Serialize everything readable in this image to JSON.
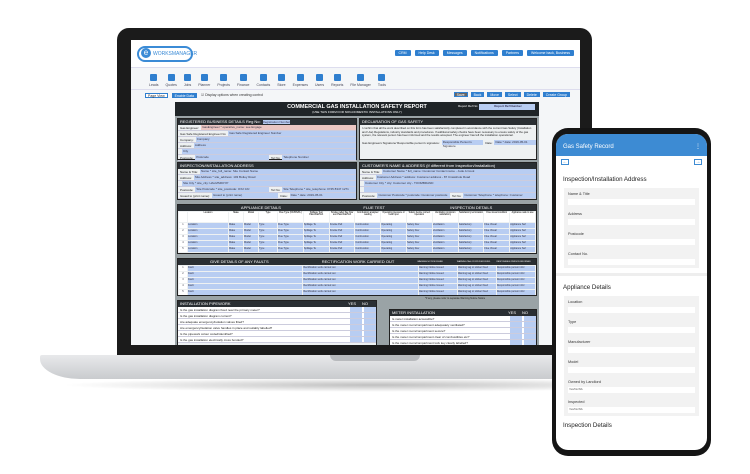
{
  "topbar": {
    "buttons": [
      "CRM",
      "Help Desk",
      "Messages",
      "Notifications",
      "Partners",
      "Welcome back, Business"
    ]
  },
  "logo": "WORKSMANAGER",
  "nav": [
    "Leads",
    "Quotes",
    "Jobs",
    "Planner",
    "Projects",
    "Finance",
    "Contacts",
    "Store",
    "Expenses",
    "Users",
    "Reports",
    "File Manager",
    "Tools"
  ],
  "options": {
    "page_view": "Page View",
    "enable_data": "Enable Data",
    "display_label": "Display options when creating control",
    "right": [
      "Save",
      "Back",
      "Move",
      "Select",
      "Delete",
      "Create Group"
    ]
  },
  "form": {
    "title": "COMMERCIAL GAS INSTALLATION SAFETY REPORT",
    "subtitle": "(USE THIS FORM FOR NON-DOMESTIC INSTALLATIONS ONLY)",
    "ref_label": "Report Ref No:",
    "ref_value": "Report Ref Number",
    "business": {
      "heading": "REGISTERED BUSINESS DETAILS",
      "reg_label": "Reg No:",
      "reg": "Registration Number",
      "rows": [
        [
          "Gas Engineer:",
          "GasEngineer * operative_name: see Engage"
        ],
        [
          "Gas Safe Registered Engineer No:",
          "Gas Safe Registered Engineer Number"
        ],
        [
          "Company:",
          "Company"
        ],
        [
          "Address:",
          "Address"
        ],
        [
          "",
          "City"
        ],
        [
          "Postcode:",
          "Postcode"
        ]
      ],
      "tel_label": "Tel No:",
      "tel": "Telephone Number"
    },
    "declaration": {
      "heading": "DECLARATION OF GAS SAFETY",
      "text": "I confirm that all the work described on this form has been satisfactorily completed in accordance with the current Gas Safety (Installation and Use) Regulations, industry standards and procedures. If additional safety checks have been necessary to ensure safety of the gas system, the relevant person has been informed and the results accepted. The engineer has left the installation operational.",
      "sig_label": "Gas Engineers Signature/ Responsible person's signature:",
      "sig": "Responsible Person's Signature",
      "date_label": "Date:",
      "date": "Date * date: 2019-05-01"
    },
    "inspection": {
      "heading": "INSPECTION/INSTALLATION ADDRESS",
      "rows": [
        [
          "Name & Title:",
          "Name * site_full_name: Site Contact Name"
        ],
        [
          "Address:",
          "Site Address * site_address: 103 Botley Road"
        ],
        [
          "",
          "Site City * site_city: HALMSROYP"
        ],
        [
          "Postcode:",
          "Site Postcode * site_postcode: OX2 0JJ"
        ],
        [
          "Issued to (print name):",
          "Issued to (print name)"
        ]
      ],
      "tel_label": "Tel No:",
      "tel": "Site Telephone * site_telephone: 0745 8347 1271",
      "date_label": "Date:",
      "date": "Date * date: 2019-05-01"
    },
    "customer": {
      "heading": "CUSTOMER'S NAME & ADDRESS",
      "note": "(If different from Inspection/Installation)",
      "rows": [
        [
          "Name & Title:",
          "Customer Name * full_name: Customer Contact name - Jude A Cook"
        ],
        [
          "Address:",
          "Customer Address * address: Customer address - 87 Crawshole Road"
        ],
        [
          "",
          "Customer City * city: Customer city - TOOMBRAND"
        ],
        [
          "",
          ""
        ],
        [
          "Postcode:",
          "Customer Postcode * postcode: Customer postcode"
        ]
      ],
      "tel_label": "Tel No:",
      "tel": "Customer Telephone * telephone: Customer"
    },
    "appliance": {
      "heading": "APPLIANCE DETAILS",
      "flue_heading": "FLUE TEST",
      "insp_heading": "INSPECTION DETAILS",
      "columns": [
        "",
        "Location",
        "Make",
        "Model",
        "Type",
        "Flue Type (OF/RS/FL)",
        "Spillage Test Pass/Fail/N/A",
        "Smoke pellet flue flow test Pass/Fail/N/A",
        "Combustion analyser reading",
        "Operating pressure or heat input",
        "Safety device correct operation",
        "Ventilation provision satisfactory",
        "Satisfactory termination",
        "Flue visual condition",
        "Appliance safe to use"
      ],
      "rows": [
        [
          "1",
          "Location",
          "Make",
          "Model",
          "Type",
          "Flue Type",
          "Spillage Te",
          "Smoke Pell",
          "Combustion",
          "Operating",
          "Safety Dev",
          "Ventilation",
          "Satisfactory",
          "Flue Visual",
          "Appliance Saf"
        ],
        [
          "2",
          "Location",
          "Make",
          "Model",
          "Type",
          "Flue Type",
          "Spillage Te",
          "Smoke Pell",
          "Combustion",
          "Operating",
          "Safety Dev",
          "Ventilation",
          "Satisfactory",
          "Flue Visual",
          "Appliance Saf"
        ],
        [
          "3",
          "Location",
          "Make",
          "Model",
          "Type",
          "Flue Type",
          "Spillage Te",
          "Smoke Pell",
          "Combustion",
          "Operating",
          "Safety Dev",
          "Ventilation",
          "Satisfactory",
          "Flue Visual",
          "Appliance Saf"
        ],
        [
          "4",
          "Location",
          "Make",
          "Model",
          "Type",
          "Flue Type",
          "Spillage Te",
          "Smoke Pell",
          "Combustion",
          "Operating",
          "Safety Dev",
          "Ventilation",
          "Satisfactory",
          "Flue Visual",
          "Appliance Saf"
        ],
        [
          "5",
          "Location",
          "Make",
          "Model",
          "Type",
          "Flue Type",
          "Spillage Te",
          "Smoke Pell",
          "Combustion",
          "Operating",
          "Safety Dev",
          "Ventilation",
          "Satisfactory",
          "Flue Visual",
          "Appliance Saf"
        ]
      ]
    },
    "faults": {
      "heading": "GIVE DETAILS OF ANY FAULTS",
      "rect_heading": "RECTIFICATION WORK CARRIED OUT",
      "col_a": "WARNING NOTICE ISSUED",
      "col_b": "WARNING TAG OR STICKER FIXED",
      "col_c": "RESPONSIBLE PERSON INFORMED",
      "rows": [
        [
          "1",
          "Fault",
          "Rectification work carried out",
          "Warning Notice Issued",
          "Warning tag or sticker fixed",
          "Responsible person infor"
        ],
        [
          "2",
          "Fault",
          "Rectification work carried out",
          "Warning Notice Issued",
          "Warning tag or sticker fixed",
          "Responsible person infor"
        ],
        [
          "3",
          "Fault",
          "Rectification work carried out",
          "Warning Notice Issued",
          "Warning tag or sticker fixed",
          "Responsible person infor"
        ],
        [
          "4",
          "Fault",
          "Rectification work carried out",
          "Warning Notice Issued",
          "Warning tag or sticker fixed",
          "Responsible person infor"
        ],
        [
          "5",
          "Fault",
          "Rectification work carried out",
          "Warning Notice Issued",
          "Warning tag or sticker fixed",
          "Responsible person infor"
        ]
      ],
      "note": "*If any, please refer to separate Warning Notice Notice"
    },
    "pipework": {
      "heading": "INSTALLATION PIPEWORK",
      "yes": "YES",
      "no": "NO",
      "rows": [
        "Is the gas installation diagram fixed near the primary meter?",
        "Is the gas installation diagram current?",
        "Are adequate emergency/isolation valves fitted?",
        "Are emergency/isolation valve handles in place and suitably labelled?",
        "Is the pipework colour coded/identified?",
        "Is the gas installation electrically cross bonded?"
      ]
    },
    "meter": {
      "heading": "METER INSTALLATION",
      "yes": "YES",
      "no": "NO",
      "rows": [
        "Is meter installation accessible?",
        "Is the meter room/compartment adequately ventilated?",
        "Is the meter room/compartment secure?",
        "Is the meter room/compartment clear of combustibles etc?",
        "Is the meter room/compartment lock key clearly labelled?"
      ]
    }
  },
  "phone": {
    "title": "Gas Safety Record",
    "section1": "Inspection/Installation Address",
    "fields1": [
      "Name & Title",
      "Address",
      "Postcode",
      "Contact No."
    ],
    "section2": "Appliance Details",
    "fields2": [
      "Location",
      "Type",
      "Manufacturer",
      "Model"
    ],
    "selects": [
      {
        "label": "Owned by Landlord",
        "value": "Yes/No/NA"
      },
      {
        "label": "Inspected",
        "value": "Yes/No/NA"
      }
    ],
    "section3": "Inspection Details"
  },
  "colors": {
    "accent": "#3d8bd3",
    "field": "#b8cdf2",
    "form_header": "#1f2427"
  }
}
